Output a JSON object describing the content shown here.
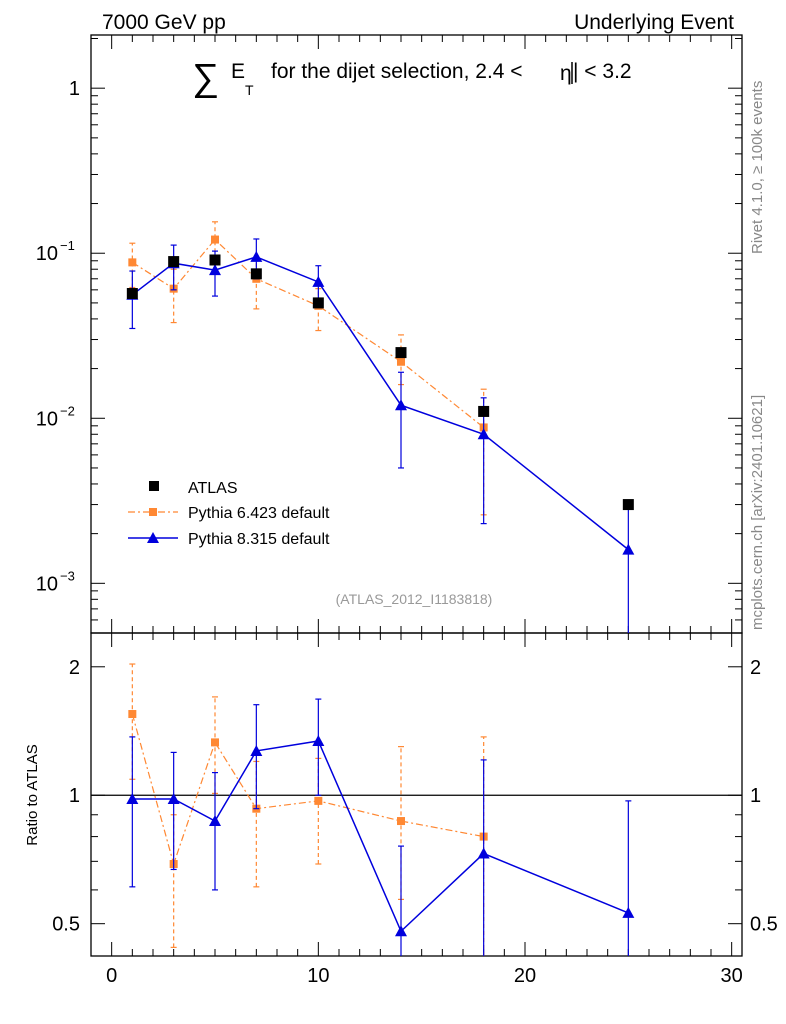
{
  "header": {
    "left": "7000 GeV pp",
    "right": "Underlying Event"
  },
  "title": {
    "sum_symbol": "∑",
    "quantity": "E",
    "subscript": "T",
    "text": "for the dijet selection, 2.4 <",
    "eta_symbol": "η",
    "text_end": "| < 3.2"
  },
  "side_labels": {
    "rivet": "Rivet 4.1.0, ≥ 100k events",
    "mcplots": "mcplots.cern.ch [arXiv:2401.10621]"
  },
  "analysis_id": "(ATLAS_2012_I1183818)",
  "colors": {
    "atlas": "#000000",
    "pythia6": "#ff8833",
    "pythia8": "#0000dd",
    "axis": "#000000"
  },
  "chart_data": [
    {
      "type": "scatter",
      "panel": "main",
      "yscale": "log",
      "xlim": [
        -1,
        30.5
      ],
      "ylim": [
        0.0005,
        2.1
      ],
      "y_ticks": [
        {
          "value": 1,
          "label": "1",
          "exp": ""
        },
        {
          "value": 0.1,
          "label": "10",
          "exp": "−1"
        },
        {
          "value": 0.01,
          "label": "10",
          "exp": "−2"
        },
        {
          "value": 0.001,
          "label": "10",
          "exp": "−3"
        }
      ],
      "legend": {
        "placement": "bottom-left",
        "entries": [
          "ATLAS",
          "Pythia 6.423 default",
          "Pythia 8.315 default"
        ]
      },
      "series": [
        {
          "name": "ATLAS",
          "style": "data",
          "marker": "square",
          "x": [
            1,
            3,
            5,
            7,
            10,
            14,
            18,
            25
          ],
          "y": [
            0.057,
            0.089,
            0.091,
            0.075,
            0.05,
            0.025,
            0.011,
            0.003
          ],
          "err_lo": [
            0.057,
            0.089,
            0.091,
            0.075,
            0.05,
            0.025,
            0.011,
            0.003
          ],
          "err_hi": [
            0.057,
            0.089,
            0.091,
            0.075,
            0.05,
            0.025,
            0.011,
            0.003
          ]
        },
        {
          "name": "Pythia 6.423 default",
          "style": "dashdot",
          "marker": "square",
          "x": [
            1,
            3,
            5,
            7,
            10,
            14,
            18
          ],
          "y": [
            0.088,
            0.061,
            0.121,
            0.07,
            0.048,
            0.022,
            0.0088
          ],
          "err_lo": [
            0.062,
            0.038,
            0.092,
            0.046,
            0.034,
            0.016,
            0.0026
          ],
          "err_hi": [
            0.115,
            0.08,
            0.155,
            0.09,
            0.061,
            0.032,
            0.015
          ]
        },
        {
          "name": "Pythia 8.315 default",
          "style": "solid",
          "marker": "triangle",
          "x": [
            1,
            3,
            5,
            7,
            10,
            14,
            18,
            25
          ],
          "y": [
            0.056,
            0.087,
            0.079,
            0.095,
            0.067,
            0.012,
            0.008,
            0.0016
          ],
          "err_lo": [
            0.035,
            0.06,
            0.055,
            0.07,
            0.05,
            0.005,
            0.0023,
            0.0003
          ],
          "err_hi": [
            0.078,
            0.112,
            0.103,
            0.122,
            0.084,
            0.019,
            0.0133,
            0.0029
          ]
        }
      ]
    },
    {
      "type": "scatter",
      "panel": "ratio",
      "yscale": "log",
      "ylabel": "Ratio to ATLAS",
      "xlim": [
        -1,
        30.5
      ],
      "ylim": [
        0.42,
        2.4
      ],
      "x_ticks": [
        0,
        10,
        20,
        30
      ],
      "x_tick_labels": [
        "0",
        "10",
        "20",
        "30"
      ],
      "y_ticks": [
        0.5,
        1,
        2
      ],
      "y_tick_labels": [
        "0.5",
        "1",
        "2"
      ],
      "reference_line": 1,
      "series": [
        {
          "name": "Pythia 6.423 default",
          "style": "dashdot",
          "marker": "square",
          "x": [
            1,
            3,
            5,
            7,
            10,
            14,
            18
          ],
          "y": [
            1.55,
            0.69,
            1.33,
            0.93,
            0.97,
            0.87,
            0.8
          ],
          "err_lo": [
            1.09,
            0.44,
            1.01,
            0.61,
            0.69,
            0.57,
            0.24
          ],
          "err_hi": [
            2.03,
            0.9,
            1.7,
            1.2,
            1.22,
            1.3,
            1.37
          ]
        },
        {
          "name": "Pythia 8.315 default",
          "style": "solid",
          "marker": "triangle",
          "x": [
            1,
            3,
            5,
            7,
            10,
            14,
            18,
            25
          ],
          "y": [
            0.98,
            0.98,
            0.87,
            1.27,
            1.34,
            0.48,
            0.73,
            0.53
          ],
          "err_lo": [
            0.61,
            0.67,
            0.6,
            0.93,
            1.0,
            0.2,
            0.21,
            0.1
          ],
          "err_hi": [
            1.37,
            1.26,
            1.13,
            1.63,
            1.68,
            0.76,
            1.21,
            0.97
          ]
        }
      ]
    }
  ]
}
